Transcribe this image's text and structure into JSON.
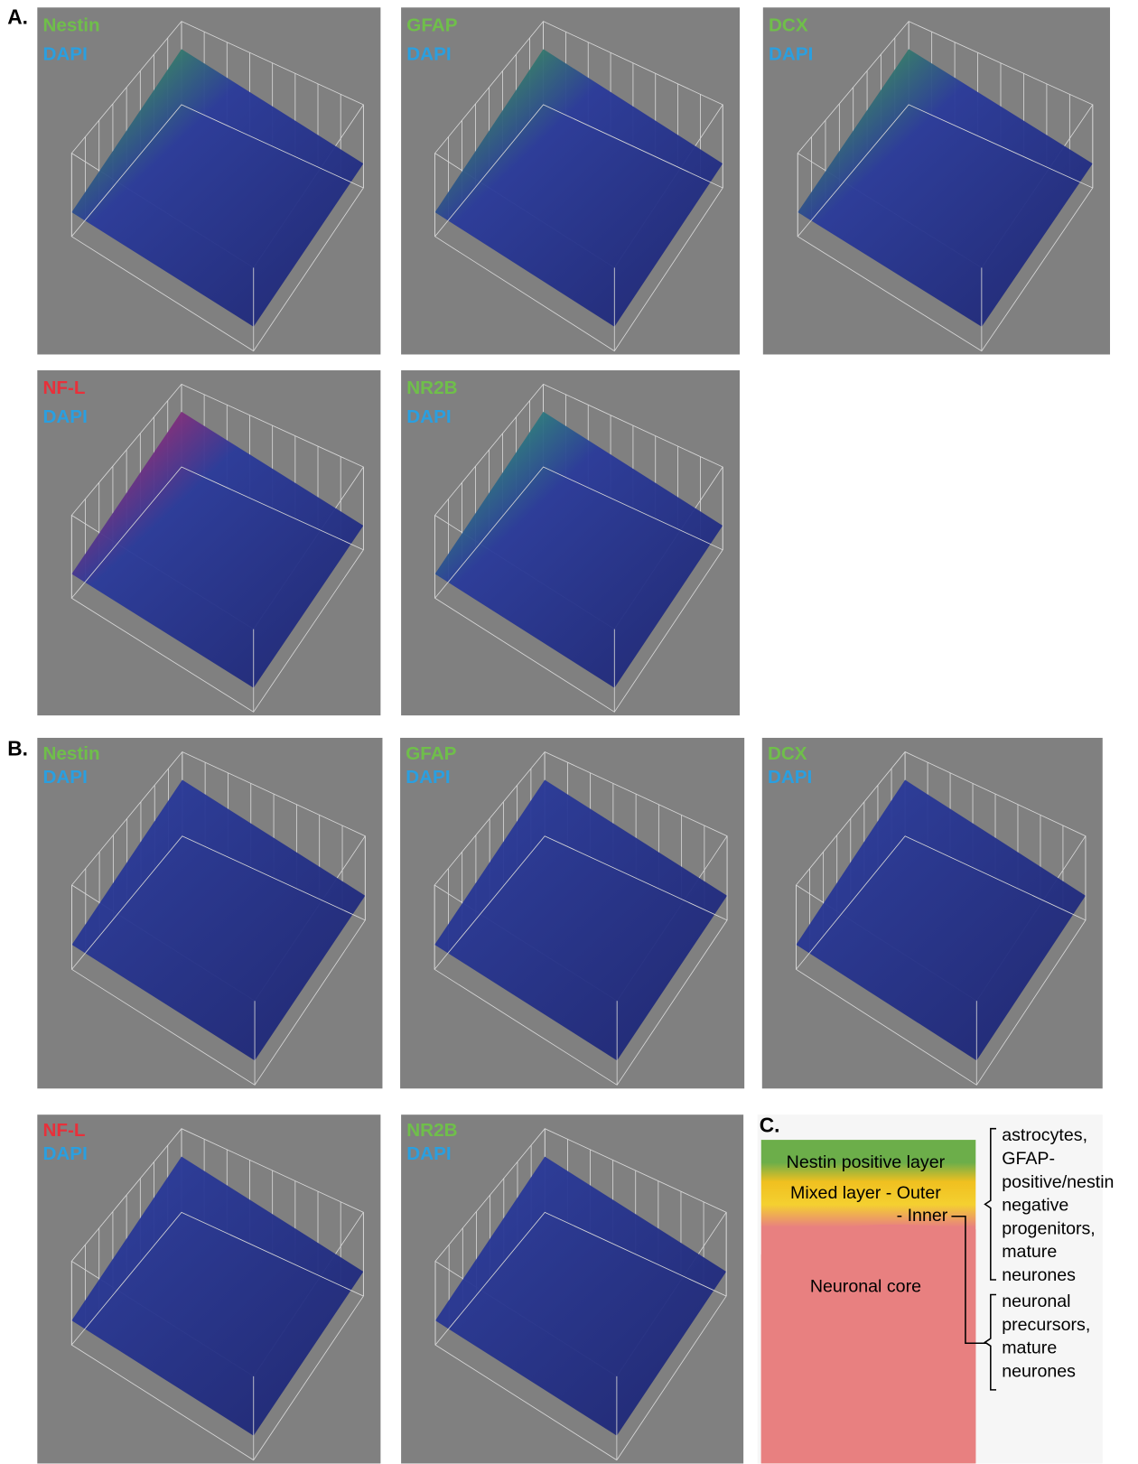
{
  "sections": [
    {
      "label": "A.",
      "panels": [
        {
          "markers": [
            "Nestin",
            "DAPI"
          ]
        },
        {
          "markers": [
            "GFAP",
            "DAPI"
          ]
        },
        {
          "markers": [
            "DCX",
            "DAPI"
          ]
        },
        {
          "markers": [
            "NF-L",
            "DAPI"
          ]
        },
        {
          "markers": [
            "NR2B",
            "DAPI"
          ]
        }
      ]
    },
    {
      "label": "B.",
      "panels": [
        {
          "markers": [
            "Nestin",
            "DAPI"
          ]
        },
        {
          "markers": [
            "GFAP",
            "DAPI"
          ]
        },
        {
          "markers": [
            "DCX",
            "DAPI"
          ]
        },
        {
          "markers": [
            "NF-L",
            "DAPI"
          ]
        },
        {
          "markers": [
            "NR2B",
            "DAPI"
          ]
        }
      ]
    }
  ],
  "diagram": {
    "label": "C.",
    "layers": [
      "Nestin positive layer",
      "Mixed layer - Outer",
      "- Inner",
      "Neuronal core"
    ],
    "annotations": [
      [
        "astrocytes,",
        "GFAP-",
        "positive/nestin",
        "negative",
        "progenitors,",
        "mature",
        "neurones"
      ],
      [
        "neuronal",
        "precursors,",
        "mature",
        "neurones"
      ]
    ]
  }
}
